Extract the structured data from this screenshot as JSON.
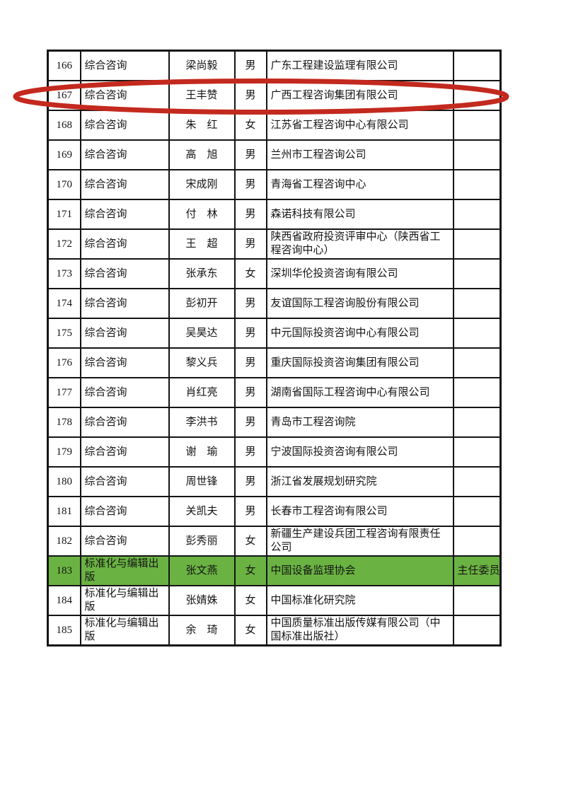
{
  "page": {
    "background_color": "#ffffff",
    "description": "scanned roster table page with red circle annotation and one green highlighted row"
  },
  "table": {
    "rows": [
      {
        "no": "166",
        "category": "综合咨询",
        "name": "梁尚毅",
        "gender": "男",
        "company": "广东工程建设监理有限公司",
        "role": "",
        "highlighted": false,
        "circled": false
      },
      {
        "no": "167",
        "category": "综合咨询",
        "name": "王丰赞",
        "gender": "男",
        "company": "广西工程咨询集团有限公司",
        "role": "",
        "highlighted": false,
        "circled": true
      },
      {
        "no": "168",
        "category": "综合咨询",
        "name": "朱　红",
        "gender": "女",
        "company": "江苏省工程咨询中心有限公司",
        "role": "",
        "highlighted": false,
        "circled": false
      },
      {
        "no": "169",
        "category": "综合咨询",
        "name": "高　旭",
        "gender": "男",
        "company": "兰州市工程咨询公司",
        "role": "",
        "highlighted": false,
        "circled": false
      },
      {
        "no": "170",
        "category": "综合咨询",
        "name": "宋成刚",
        "gender": "男",
        "company": "青海省工程咨询中心",
        "role": "",
        "highlighted": false,
        "circled": false
      },
      {
        "no": "171",
        "category": "综合咨询",
        "name": "付　林",
        "gender": "男",
        "company": "森诺科技有限公司",
        "role": "",
        "highlighted": false,
        "circled": false
      },
      {
        "no": "172",
        "category": "综合咨询",
        "name": "王　超",
        "gender": "男",
        "company": "陕西省政府投资评审中心（陕西省工程咨询中心）",
        "role": "",
        "highlighted": false,
        "circled": false
      },
      {
        "no": "173",
        "category": "综合咨询",
        "name": "张承东",
        "gender": "女",
        "company": "深圳华伦投资咨询有限公司",
        "role": "",
        "highlighted": false,
        "circled": false
      },
      {
        "no": "174",
        "category": "综合咨询",
        "name": "彭初开",
        "gender": "男",
        "company": "友谊国际工程咨询股份有限公司",
        "role": "",
        "highlighted": false,
        "circled": false
      },
      {
        "no": "175",
        "category": "综合咨询",
        "name": "吴昊达",
        "gender": "男",
        "company": "中元国际投资咨询中心有限公司",
        "role": "",
        "highlighted": false,
        "circled": false
      },
      {
        "no": "176",
        "category": "综合咨询",
        "name": "黎义兵",
        "gender": "男",
        "company": "重庆国际投资咨询集团有限公司",
        "role": "",
        "highlighted": false,
        "circled": false
      },
      {
        "no": "177",
        "category": "综合咨询",
        "name": "肖红亮",
        "gender": "男",
        "company": "湖南省国际工程咨询中心有限公司",
        "role": "",
        "highlighted": false,
        "circled": false
      },
      {
        "no": "178",
        "category": "综合咨询",
        "name": "李洪书",
        "gender": "男",
        "company": "青岛市工程咨询院",
        "role": "",
        "highlighted": false,
        "circled": false
      },
      {
        "no": "179",
        "category": "综合咨询",
        "name": "谢　瑜",
        "gender": "男",
        "company": "宁波国际投资咨询有限公司",
        "role": "",
        "highlighted": false,
        "circled": false
      },
      {
        "no": "180",
        "category": "综合咨询",
        "name": "周世锋",
        "gender": "男",
        "company": "浙江省发展规划研究院",
        "role": "",
        "highlighted": false,
        "circled": false
      },
      {
        "no": "181",
        "category": "综合咨询",
        "name": "关凯夫",
        "gender": "男",
        "company": "长春市工程咨询有限公司",
        "role": "",
        "highlighted": false,
        "circled": false
      },
      {
        "no": "182",
        "category": "综合咨询",
        "name": "彭秀丽",
        "gender": "女",
        "company": "新疆生产建设兵团工程咨询有限责任公司",
        "role": "",
        "highlighted": false,
        "circled": false
      },
      {
        "no": "183",
        "category": "标准化与编辑出版",
        "name": "张文燕",
        "gender": "女",
        "company": "中国设备监理协会",
        "role": "主任委员",
        "highlighted": true,
        "circled": false
      },
      {
        "no": "184",
        "category": "标准化与编辑出版",
        "name": "张婧姝",
        "gender": "女",
        "company": "中国标准化研究院",
        "role": "",
        "highlighted": false,
        "circled": false
      },
      {
        "no": "185",
        "category": "标准化与编辑出版",
        "name": "余　琦",
        "gender": "女",
        "company": "中国质量标准出版传媒有限公司（中国标准出版社）",
        "role": "",
        "highlighted": false,
        "circled": false
      }
    ]
  },
  "annotations": {
    "red_circle": {
      "around_row_no": "167",
      "color": "#c3291e"
    },
    "row_highlight": {
      "row_no": "183",
      "color": "#6ab342"
    }
  },
  "colors": {
    "table_border": "#141414",
    "text": "#141414"
  }
}
